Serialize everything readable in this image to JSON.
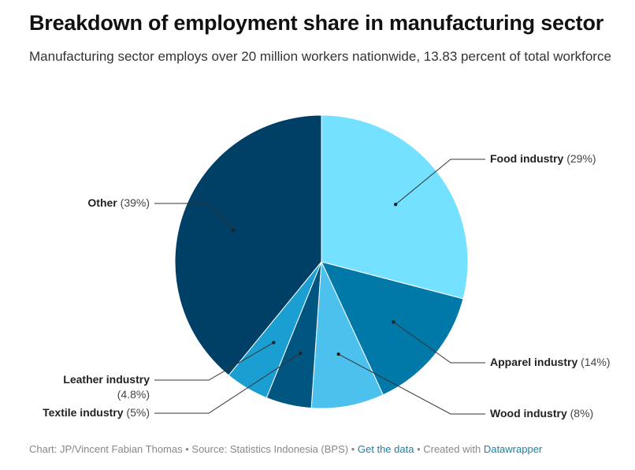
{
  "title": "Breakdown of employment share in manufacturing sector",
  "subtitle": "Manufacturing sector employs over 20 million workers nationwide, 13.83 percent of total workforce",
  "footer": {
    "credit": "Chart: JP/Vincent Fabian Thomas",
    "sep1": " • ",
    "source": "Source: Statistics Indonesia (BPS)",
    "sep2": " • ",
    "get_data": "Get the data",
    "sep3": " • Created with ",
    "created_with": "Datawrapper"
  },
  "chart_data": {
    "type": "pie",
    "slices": [
      {
        "label": "Food industry",
        "pct_text": "(29%)",
        "value": 29,
        "color": "#73e1ff"
      },
      {
        "label": "Apparel industry",
        "pct_text": "(14%)",
        "value": 14,
        "color": "#0079a8"
      },
      {
        "label": "Wood industry",
        "pct_text": "(8%)",
        "value": 8,
        "color": "#4dc1ee"
      },
      {
        "label": "Textile industry",
        "pct_text": "(5%)",
        "value": 5,
        "color": "#005581"
      },
      {
        "label": "Leather industry",
        "pct_text": "(4.8%)",
        "value": 4.8,
        "color": "#1b9fd3"
      },
      {
        "label": "Other",
        "pct_text": "(39%)",
        "value": 39,
        "color": "#003f66"
      }
    ]
  }
}
